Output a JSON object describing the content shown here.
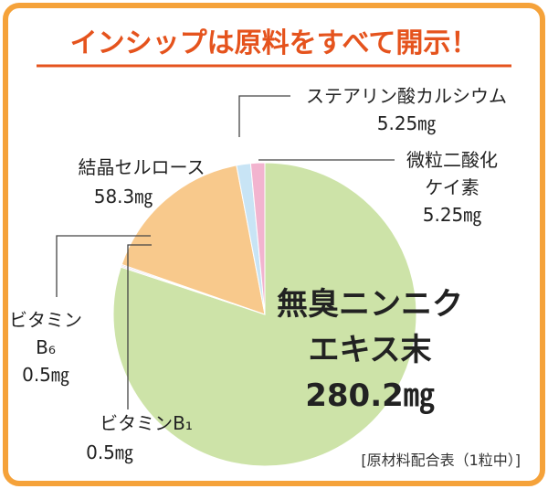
{
  "chart_data": {
    "type": "pie",
    "title": "インシップは原料をすべて開示！",
    "note": "[原材料配合表（1粒中）]",
    "categories": [
      "無臭ニンニク\nエキス末",
      "ビタミンB₁",
      "ビタミン\nB₆",
      "結晶セルロース",
      "ステアリン酸カルシウム",
      "微粒二酸化\nケイ素"
    ],
    "values": [
      280.2,
      0.5,
      0.5,
      58.3,
      5.25,
      5.25
    ],
    "value_labels": [
      "280.2㎎",
      "0.5㎎",
      "0.5㎎",
      "58.3㎎",
      "5.25㎎",
      "5.25㎎"
    ],
    "colors": [
      "#cde3a8",
      "#d9c7e0",
      "#d9c7e0",
      "#f8c98c",
      "#c8e4f5",
      "#f2b4cf"
    ]
  }
}
